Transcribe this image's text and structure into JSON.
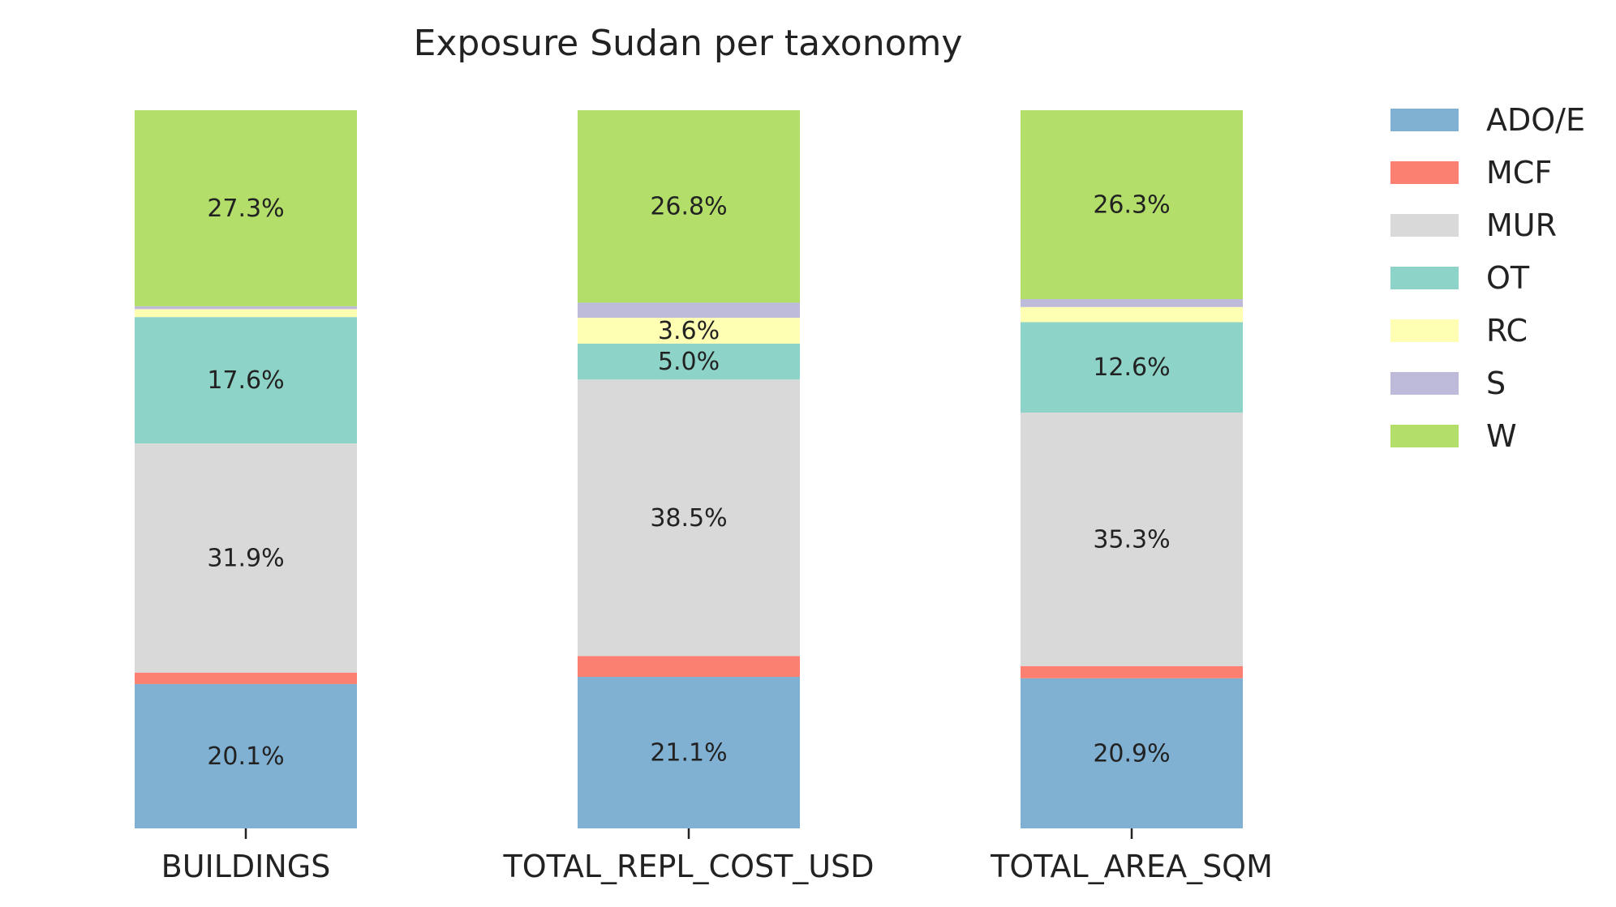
{
  "chart_data": {
    "type": "bar",
    "stacked": true,
    "normalized_percent": true,
    "title": "Exposure Sudan per taxonomy",
    "xlabel": "",
    "ylabel": "",
    "ylim": [
      0,
      100
    ],
    "grid": false,
    "legend_position": "right",
    "categories": [
      "BUILDINGS",
      "TOTAL_REPL_COST_USD",
      "TOTAL_AREA_SQM"
    ],
    "series": [
      {
        "name": "ADO/E",
        "color": "#80b1d3",
        "values": [
          20.1,
          21.1,
          20.9
        ],
        "labels": [
          "20.1%",
          "21.1%",
          "20.9%"
        ]
      },
      {
        "name": "MCF",
        "color": "#fb8072",
        "values": [
          1.6,
          2.9,
          1.7
        ],
        "labels": [
          "",
          "",
          ""
        ]
      },
      {
        "name": "MUR",
        "color": "#d9d9d9",
        "values": [
          31.9,
          38.5,
          35.3
        ],
        "labels": [
          "31.9%",
          "38.5%",
          "35.3%"
        ]
      },
      {
        "name": "OT",
        "color": "#8dd3c7",
        "values": [
          17.6,
          5.0,
          12.6
        ],
        "labels": [
          "17.6%",
          "5.0%",
          "12.6%"
        ]
      },
      {
        "name": "RC",
        "color": "#ffffb3",
        "values": [
          1.1,
          3.6,
          2.1
        ],
        "labels": [
          "",
          "3.6%",
          ""
        ]
      },
      {
        "name": "S",
        "color": "#bebada",
        "values": [
          0.4,
          2.1,
          1.1
        ],
        "labels": [
          "",
          "",
          ""
        ]
      },
      {
        "name": "W",
        "color": "#b3de69",
        "values": [
          27.3,
          26.8,
          26.3
        ],
        "labels": [
          "27.3%",
          "26.8%",
          "26.3%"
        ]
      }
    ]
  }
}
